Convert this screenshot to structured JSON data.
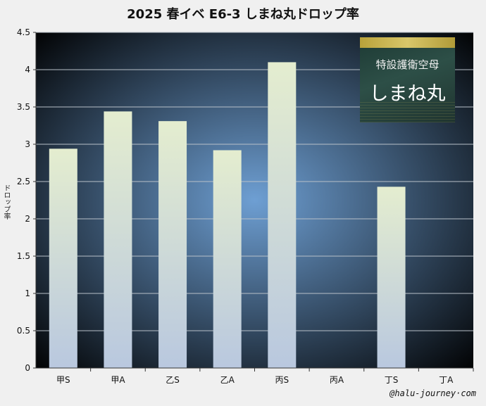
{
  "chart_data": {
    "type": "bar",
    "title": "2025 春イベ  E6-3 しまね丸ドロップ率",
    "ylabel": "ドロップ率",
    "xlabel": "",
    "categories": [
      "甲S",
      "甲A",
      "乙S",
      "乙A",
      "丙S",
      "丙A",
      "丁S",
      "丁A"
    ],
    "values": [
      2.94,
      3.44,
      3.31,
      2.92,
      4.1,
      null,
      2.43,
      null
    ],
    "ylim": [
      0,
      4.5
    ],
    "yticks": [
      "0",
      "0.5",
      "1",
      "1.5",
      "2",
      "2.5",
      "3",
      "3.5",
      "4",
      "4.5"
    ],
    "grid": true,
    "colors": {
      "bar_top": "#e4edcf",
      "bar_bottom": "#b9c8df",
      "plot_center": "#6e9fd3",
      "plot_edge": "#000000"
    }
  },
  "badge": {
    "type": "特設護衛空母",
    "name": "しまね丸"
  },
  "credit": "@halu-journey·com"
}
